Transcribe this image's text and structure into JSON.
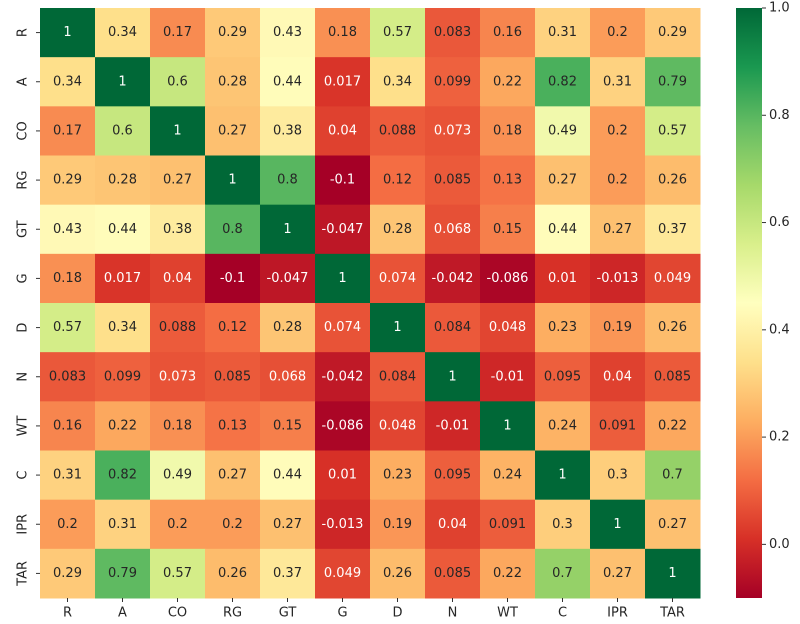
{
  "chart_data": {
    "type": "heatmap",
    "x_categories": [
      "R",
      "A",
      "CO",
      "RG",
      "GT",
      "G",
      "D",
      "N",
      "WT",
      "C",
      "IPR",
      "TAR"
    ],
    "y_categories": [
      "R",
      "A",
      "CO",
      "RG",
      "GT",
      "G",
      "D",
      "N",
      "WT",
      "C",
      "IPR",
      "TAR"
    ],
    "values": [
      [
        1,
        0.34,
        0.17,
        0.29,
        0.43,
        0.18,
        0.57,
        0.083,
        0.16,
        0.31,
        0.2,
        0.29
      ],
      [
        0.34,
        1,
        0.6,
        0.28,
        0.44,
        0.017,
        0.34,
        0.099,
        0.22,
        0.82,
        0.31,
        0.79
      ],
      [
        0.17,
        0.6,
        1,
        0.27,
        0.38,
        0.04,
        0.088,
        0.073,
        0.18,
        0.49,
        0.2,
        0.57
      ],
      [
        0.29,
        0.28,
        0.27,
        1,
        0.8,
        -0.1,
        0.12,
        0.085,
        0.13,
        0.27,
        0.2,
        0.26
      ],
      [
        0.43,
        0.44,
        0.38,
        0.8,
        1,
        -0.047,
        0.28,
        0.068,
        0.15,
        0.44,
        0.27,
        0.37
      ],
      [
        0.18,
        0.017,
        0.04,
        -0.1,
        -0.047,
        1,
        0.074,
        -0.042,
        -0.086,
        0.01,
        -0.013,
        0.049
      ],
      [
        0.57,
        0.34,
        0.088,
        0.12,
        0.28,
        0.074,
        1,
        0.084,
        0.048,
        0.23,
        0.19,
        0.26
      ],
      [
        0.083,
        0.099,
        0.073,
        0.085,
        0.068,
        -0.042,
        0.084,
        1,
        -0.01,
        0.095,
        0.04,
        0.085
      ],
      [
        0.16,
        0.22,
        0.18,
        0.13,
        0.15,
        -0.086,
        0.048,
        -0.01,
        1,
        0.24,
        0.091,
        0.22
      ],
      [
        0.31,
        0.82,
        0.49,
        0.27,
        0.44,
        0.01,
        0.23,
        0.095,
        0.24,
        1,
        0.3,
        0.7
      ],
      [
        0.2,
        0.31,
        0.2,
        0.2,
        0.27,
        -0.013,
        0.19,
        0.04,
        0.091,
        0.3,
        1,
        0.27
      ],
      [
        0.29,
        0.79,
        0.57,
        0.26,
        0.37,
        0.049,
        0.26,
        0.085,
        0.22,
        0.7,
        0.27,
        1
      ]
    ],
    "colors": [
      "#a50026",
      "#d73027",
      "#f46d43",
      "#fdae61",
      "#fee08b",
      "#ffffbf",
      "#d9ef8b",
      "#a6d96a",
      "#66bd63",
      "#1a9850",
      "#006837"
    ],
    "clim": [
      -0.1,
      1
    ],
    "cticks": [
      {
        "value": 0,
        "label": "0.0"
      },
      0.2,
      0.4,
      0.6,
      0.8,
      {
        "value": 1,
        "label": "1.0"
      }
    ]
  }
}
